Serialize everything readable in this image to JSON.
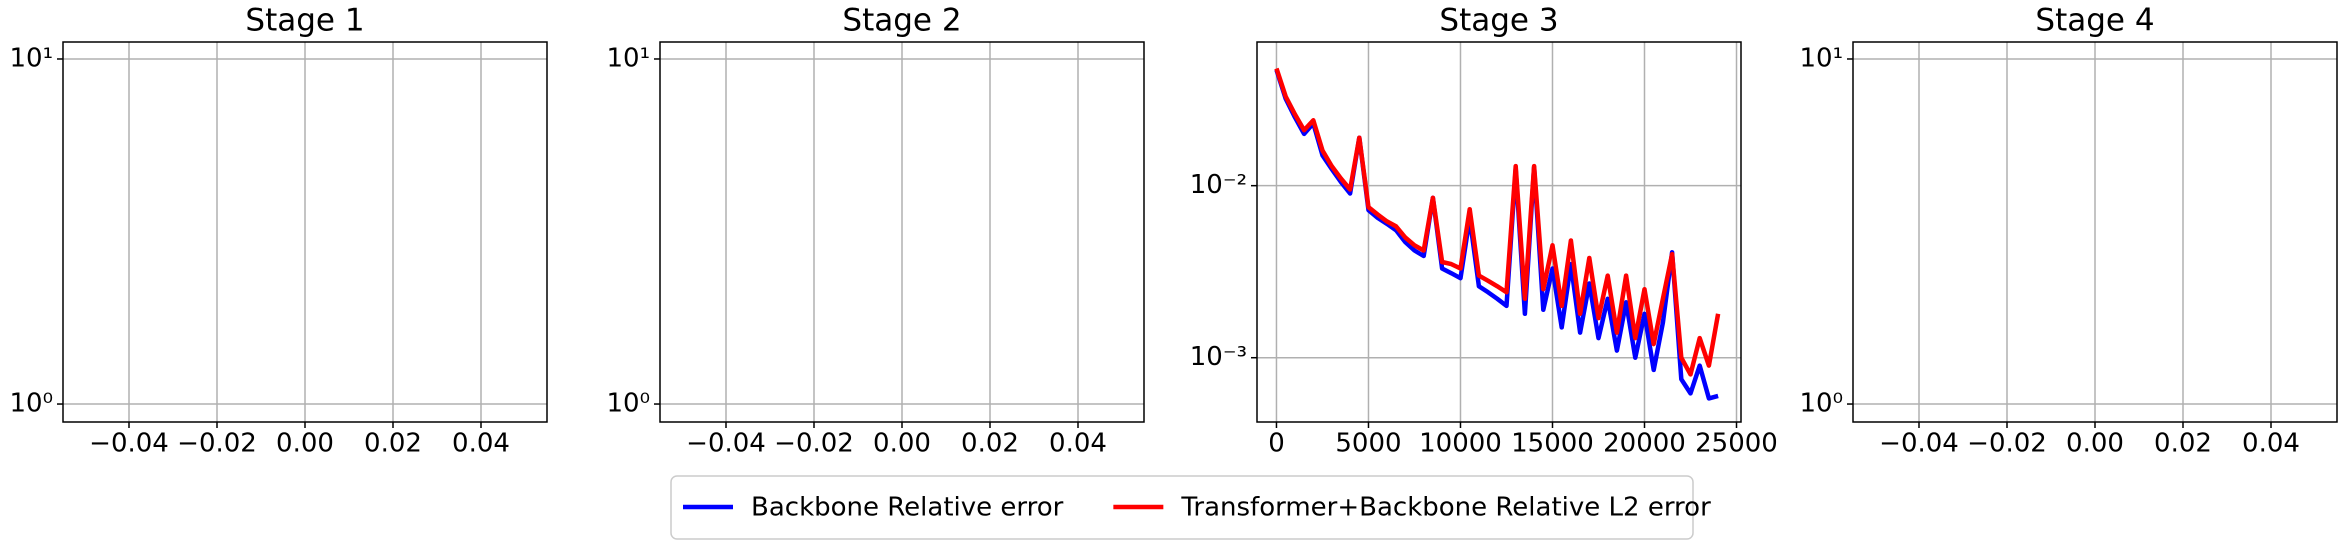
{
  "chart_data": [
    {
      "type": "line",
      "title": "Stage 1",
      "xlim": [
        -0.055,
        0.055
      ],
      "xticks": [
        {
          "value": -0.04,
          "label": "−0.04"
        },
        {
          "value": -0.02,
          "label": "−0.02"
        },
        {
          "value": 0,
          "label": "0.00"
        },
        0.02,
        0.04
      ],
      "ylim": [
        0.887,
        11.2
      ],
      "yticks": [
        {
          "value": 1,
          "label": "10⁰"
        },
        {
          "value": 10,
          "label": "10¹"
        }
      ],
      "yscale": "log",
      "grid": true,
      "series": []
    },
    {
      "type": "line",
      "title": "Stage 2",
      "xlim": [
        -0.055,
        0.055
      ],
      "xticks": [
        {
          "value": -0.04,
          "label": "−0.04"
        },
        {
          "value": -0.02,
          "label": "−0.02"
        },
        {
          "value": 0,
          "label": "0.00"
        },
        0.02,
        0.04
      ],
      "ylim": [
        0.887,
        11.2
      ],
      "yticks": [
        {
          "value": 1,
          "label": "10⁰"
        },
        {
          "value": 10,
          "label": "10¹"
        }
      ],
      "yscale": "log",
      "grid": true,
      "series": []
    },
    {
      "type": "line",
      "title": "Stage 3",
      "xlim": [
        -1058,
        25244
      ],
      "xticks": [
        0,
        5000,
        10000,
        15000,
        20000,
        25000
      ],
      "ylim": [
        0.000423,
        0.0684
      ],
      "yticks": [
        {
          "value": 0.001,
          "label": "10⁻³"
        },
        {
          "value": 0.01,
          "label": "10⁻²"
        }
      ],
      "yscale": "log",
      "grid": true,
      "legend": "below",
      "x": [
        0,
        500,
        1000,
        1500,
        2000,
        2500,
        3000,
        3500,
        4000,
        4500,
        5000,
        5500,
        6000,
        6500,
        7000,
        7500,
        8000,
        8500,
        9000,
        9500,
        10000,
        10500,
        11000,
        11500,
        12000,
        12500,
        13000,
        13500,
        14000,
        14500,
        15000,
        15500,
        16000,
        16500,
        17000,
        17500,
        18000,
        18500,
        19000,
        19500,
        20000,
        20500,
        21000,
        21500,
        22000,
        22500,
        23000,
        23500,
        24000
      ],
      "series": [
        {
          "name": "Backbone Relative error",
          "color": "#0000ff",
          "values": [
            0.047,
            0.032,
            0.025,
            0.02,
            0.023,
            0.015,
            0.0125,
            0.0105,
            0.009,
            0.019,
            0.0072,
            0.0065,
            0.006,
            0.0055,
            0.0047,
            0.0042,
            0.0039,
            0.0085,
            0.0033,
            0.0031,
            0.0029,
            0.0065,
            0.0026,
            0.0024,
            0.0022,
            0.002,
            0.0125,
            0.0018,
            0.0128,
            0.0019,
            0.0033,
            0.0015,
            0.0035,
            0.0014,
            0.0027,
            0.0013,
            0.0022,
            0.0011,
            0.0021,
            0.001,
            0.0018,
            0.00085,
            0.0016,
            0.0041,
            0.00075,
            0.00062,
            0.0009,
            0.00058,
            0.0006
          ]
        },
        {
          "name": "Transformer+Backbone Relative L2 error",
          "color": "#ff0000",
          "values": [
            0.048,
            0.033,
            0.026,
            0.021,
            0.024,
            0.016,
            0.013,
            0.011,
            0.0095,
            0.019,
            0.0075,
            0.0068,
            0.0062,
            0.0058,
            0.005,
            0.0045,
            0.0042,
            0.0085,
            0.0036,
            0.0035,
            0.0033,
            0.0073,
            0.003,
            0.0028,
            0.0026,
            0.0024,
            0.013,
            0.0022,
            0.013,
            0.0025,
            0.0045,
            0.002,
            0.0048,
            0.0018,
            0.0038,
            0.0017,
            0.003,
            0.0014,
            0.003,
            0.0013,
            0.0025,
            0.0012,
            0.0022,
            0.004,
            0.001,
            0.0008,
            0.0013,
            0.0009,
            0.0018
          ]
        }
      ]
    },
    {
      "type": "line",
      "title": "Stage 4",
      "xlim": [
        -0.055,
        0.055
      ],
      "xticks": [
        {
          "value": -0.04,
          "label": "−0.04"
        },
        {
          "value": -0.02,
          "label": "−0.02"
        },
        {
          "value": 0,
          "label": "0.00"
        },
        0.02,
        0.04
      ],
      "ylim": [
        0.887,
        11.2
      ],
      "yticks": [
        {
          "value": 1,
          "label": "10⁰"
        },
        {
          "value": 10,
          "label": "10¹"
        }
      ],
      "yscale": "log",
      "grid": true,
      "series": []
    }
  ]
}
